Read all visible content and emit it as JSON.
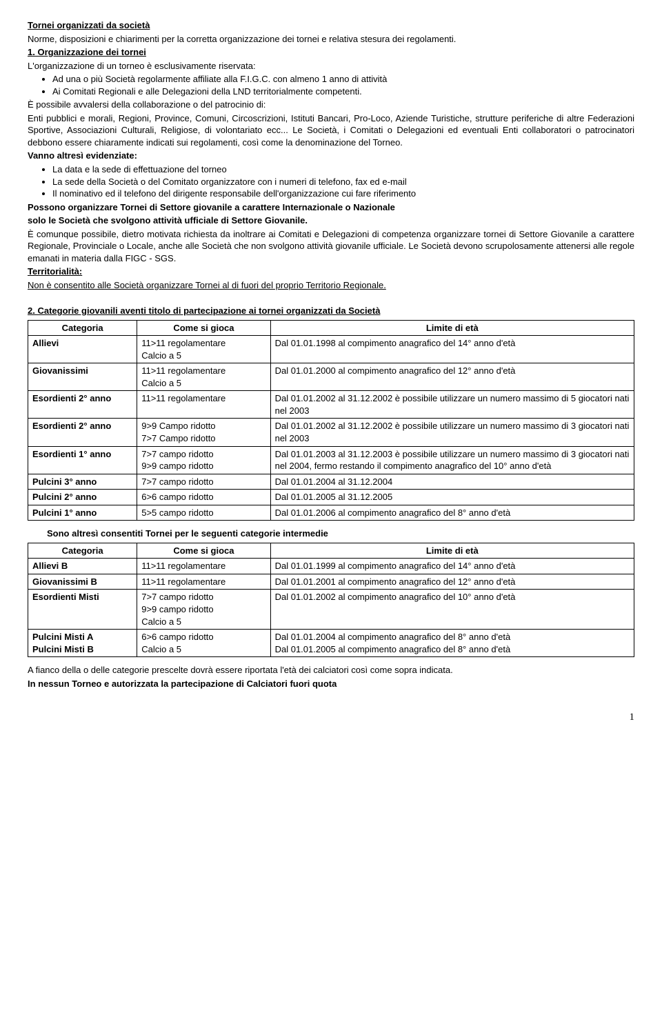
{
  "header": {
    "title": "Tornei organizzati da società",
    "subtitle": "Norme, disposizioni e chiarimenti per la corretta organizzazione dei tornei e relativa stesura dei regolamenti."
  },
  "sec1": {
    "heading": "1. Organizzazione dei tornei",
    "intro": "L'organizzazione di un torneo è esclusivamente riservata:",
    "bullets_a": [
      "Ad una o più Società regolarmente affiliate alla F.I.G.C. con almeno 1 anno di attività",
      "Ai Comitati Regionali e alle Delegazioni della LND territorialmente competenti."
    ],
    "p_collab_lead": "È possibile avvalersi della collaborazione o del patrocinio di:",
    "p_collab_body": "Enti pubblici e morali, Regioni, Province, Comuni, Circoscrizioni, Istituti Bancari, Pro-Loco, Aziende Turistiche, strutture periferiche di altre Federazioni Sportive, Associazioni Culturali, Religiose, di volontariato ecc... Le Società, i Comitati o Delegazioni ed eventuali Enti collaboratori o patrocinatori debbono essere chiaramente indicati sui regolamenti, così come la denominazione del Torneo.",
    "evidenziate_label": "Vanno altresì evidenziate:",
    "bullets_b": [
      "La data e la sede di effettuazione del torneo",
      "La sede della Società o del Comitato organizzatore con i numeri di telefono, fax ed e-mail",
      "Il nominativo ed il telefono del dirigente responsabile dell'organizzazione cui fare riferimento"
    ],
    "possono_line1": "Possono organizzare Tornei di Settore giovanile a carattere Internazionale o Nazionale",
    "possono_line2": "solo le Società che svolgono attività ufficiale di Settore Giovanile.",
    "p_comunque": "È comunque possibile, dietro motivata richiesta da inoltrare ai Comitati e Delegazioni di competenza organizzare tornei di Settore Giovanile a carattere Regionale, Provinciale o Locale, anche alle Società che non svolgono attività giovanile ufficiale. Le Società devono scrupolosamente attenersi alle regole emanati in materia dalla FIGC - SGS.",
    "territorialita_label": "Territorialità:",
    "territorialita_text": "Non è consentito alle Società organizzare Tornei al di fuori del proprio Territorio Regionale."
  },
  "sec2": {
    "heading": "2. Categorie giovanili aventi titolo di partecipazione ai tornei organizzati da Società",
    "table1": {
      "headers": [
        "Categoria",
        "Come si gioca",
        "Limite di età"
      ],
      "rows": [
        [
          "Allievi",
          "11>11 regolamentare\nCalcio a 5",
          "Dal 01.01.1998 al compimento anagrafico del 14° anno d'età"
        ],
        [
          "Giovanissimi",
          "11>11 regolamentare\nCalcio a 5",
          "Dal 01.01.2000 al compimento anagrafico del 12° anno d'età"
        ],
        [
          "Esordienti 2° anno",
          "11>11 regolamentare",
          "Dal 01.01.2002 al 31.12.2002 è possibile  utilizzare un numero massimo di 5 giocatori nati nel 2003"
        ],
        [
          "Esordienti 2° anno",
          "9>9 Campo ridotto\n7>7 Campo ridotto",
          "Dal 01.01.2002 al 31.12.2002 è possibile  utilizzare un numero massimo di 3 giocatori nati nel 2003"
        ],
        [
          "Esordienti 1° anno",
          "7>7 campo ridotto\n9>9 campo ridotto",
          "Dal 01.01.2003 al 31.12.2003 è possibile utilizzare un numero massimo di 3 giocatori nati nel 2004, fermo restando il compimento anagrafico del 10° anno d'età"
        ],
        [
          "Pulcini 3° anno",
          "7>7 campo ridotto",
          "Dal 01.01.2004 al 31.12.2004"
        ],
        [
          "Pulcini 2° anno",
          "6>6   campo ridotto",
          "Dal 01.01.2005 al 31.12.2005"
        ],
        [
          "Pulcini 1° anno",
          "5>5   campo ridotto",
          "Dal 01.01.2006 al compimento anagrafico del 8° anno d'età"
        ]
      ]
    },
    "intermediate_label": "Sono altresì consentiti Tornei per le seguenti categorie intermedie",
    "table2": {
      "headers": [
        "Categoria",
        "Come si gioca",
        "Limite di età"
      ],
      "rows": [
        [
          "Allievi B",
          "11>11 regolamentare",
          "Dal 01.01.1999 al compimento anagrafico del 14° anno d'età"
        ],
        [
          "Giovanissimi B",
          "11>11 regolamentare",
          "Dal 01.01.2001 al compimento anagrafico del 12° anno d'età"
        ],
        [
          "Esordienti Misti",
          "7>7   campo ridotto\n9>9   campo ridotto\nCalcio a 5",
          "Dal 01.01.2002 al compimento anagrafico del 10° anno d'età"
        ],
        [
          "Pulcini Misti A\nPulcini Misti B",
          "6>6 campo ridotto\nCalcio a 5",
          "Dal 01.01.2004 al compimento anagrafico del 8° anno d'età\nDal 01.01.2005 al compimento anagrafico del 8° anno d'età"
        ]
      ]
    },
    "footer_p1": "A fianco della o delle categorie prescelte dovrà essere riportata l'età dei calciatori così come sopra indicata.",
    "footer_p2": "In nessun Torneo e autorizzata la partecipazione di Calciatori fuori quota"
  },
  "page_number": "1"
}
